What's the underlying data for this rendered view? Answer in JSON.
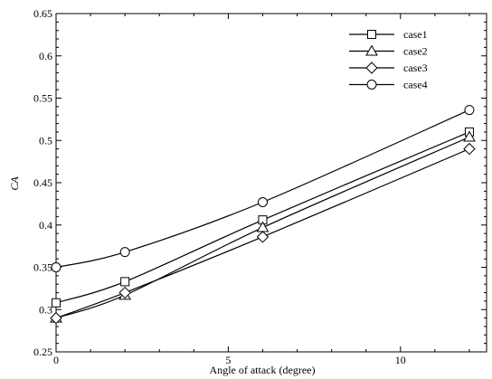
{
  "chart_data": {
    "type": "line",
    "xlabel": "Angle of attack (degree)",
    "ylabel": "CA",
    "xlim": [
      0,
      12.5
    ],
    "ylim": [
      0.25,
      0.65
    ],
    "x_ticks": [
      0,
      5,
      10
    ],
    "y_ticks": [
      0.25,
      0.3,
      0.35,
      0.4,
      0.45,
      0.5,
      0.55,
      0.6,
      0.65
    ],
    "x_tick_labels": [
      "0",
      "5",
      "10"
    ],
    "y_tick_labels": [
      "0.25",
      "0.3",
      "0.35",
      "0.4",
      "0.45",
      "0.5",
      "0.55",
      "0.6",
      "0.65"
    ],
    "grid": false,
    "legend_position": "top-right",
    "x": [
      0,
      2,
      6,
      12
    ],
    "series": [
      {
        "name": "case1",
        "marker": "square",
        "values": [
          0.308,
          0.333,
          0.406,
          0.51
        ]
      },
      {
        "name": "case2",
        "marker": "triangle",
        "values": [
          0.29,
          0.317,
          0.397,
          0.504
        ]
      },
      {
        "name": "case3",
        "marker": "diamond",
        "values": [
          0.29,
          0.32,
          0.386,
          0.49
        ]
      },
      {
        "name": "case4",
        "marker": "circle",
        "values": [
          0.35,
          0.368,
          0.427,
          0.536
        ]
      }
    ]
  }
}
